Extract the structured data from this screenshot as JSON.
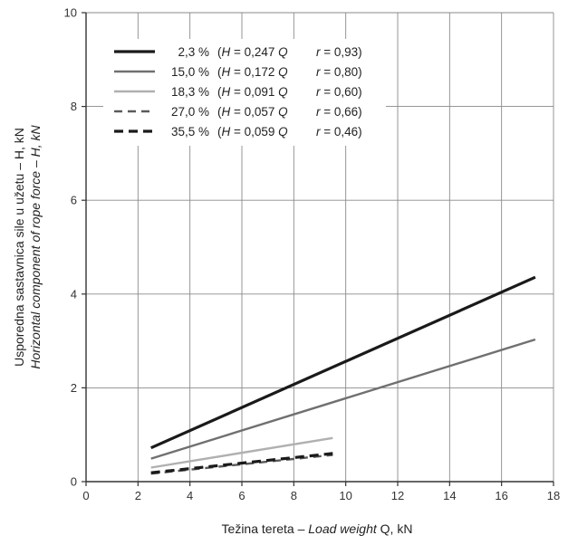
{
  "chart_data": {
    "type": "line",
    "xlabel": {
      "main": "Težina tereta – ",
      "italic": "Load weight",
      "tail": "  Q, kN"
    },
    "ylabel": {
      "line1": "Usporedna sastavnica sile u užetu – H, kN",
      "line2": "Horizontal component of rope force – H, kN"
    },
    "xlim": [
      0,
      18
    ],
    "ylim": [
      0,
      10
    ],
    "x_ticks": [
      "0",
      "2",
      "4",
      "6",
      "8",
      "10",
      "12",
      "14",
      "16",
      "18"
    ],
    "y_ticks": [
      "0",
      "2",
      "4",
      "6",
      "8",
      "10"
    ],
    "grid": true,
    "legend_position": "top-left",
    "series": [
      {
        "name": "2,3 %",
        "formula": "H = 0,247 Q",
        "r": "r = 0,93",
        "color": "#1a1a1a",
        "dash": "solid",
        "weight": "heavy",
        "x": [
          2.5,
          17.3
        ],
        "y": [
          0.72,
          4.36
        ]
      },
      {
        "name": "15,0 %",
        "formula": "H = 0,172 Q",
        "r": "r = 0,80",
        "color": "#707070",
        "dash": "solid",
        "weight": "medium",
        "x": [
          2.5,
          17.3
        ],
        "y": [
          0.49,
          3.03
        ]
      },
      {
        "name": "18,3 %",
        "formula": "H = 0,091 Q",
        "r": "r = 0,60",
        "color": "#b0b0b0",
        "dash": "solid",
        "weight": "medium",
        "x": [
          2.5,
          9.5
        ],
        "y": [
          0.3,
          0.93
        ]
      },
      {
        "name": "27,0 %",
        "formula": "H = 0,057 Q",
        "r": "r = 0,66",
        "color": "#5a5a5a",
        "dash": "dashed",
        "weight": "medium",
        "x": [
          2.5,
          9.5
        ],
        "y": [
          0.17,
          0.57
        ]
      },
      {
        "name": "35,5 %",
        "formula": "H = 0,059 Q",
        "r": "r = 0,46",
        "color": "#1a1a1a",
        "dash": "dashed",
        "weight": "heavy",
        "x": [
          2.5,
          9.5
        ],
        "y": [
          0.19,
          0.6
        ]
      }
    ]
  }
}
